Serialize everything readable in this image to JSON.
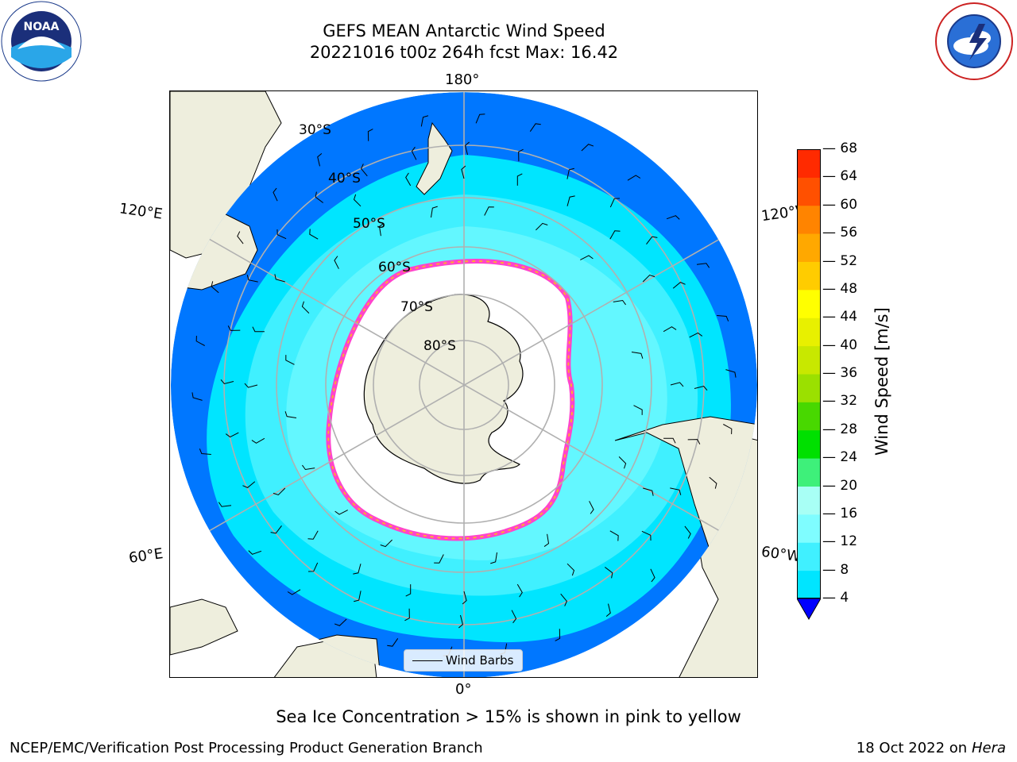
{
  "title": {
    "line1": "GEFS MEAN Antarctic Wind Speed",
    "line2": "20221016 t00z 264h fcst   Max: 16.42"
  },
  "logos": {
    "noaa": {
      "text": "NOAA",
      "ring_text": "NATIONAL OCEANIC AND ATMOSPHERIC ADMINISTRATION · U.S. DEPARTMENT OF COMMERCE"
    },
    "nws": {
      "ring_text": "NATIONAL WEATHER SERVICE"
    }
  },
  "map": {
    "projection": "south-polar-stereographic",
    "longitude_labels": {
      "top": "180°",
      "bottom": "0°",
      "upper_left": "120°E",
      "upper_right": "120°W",
      "lower_left": "60°E",
      "lower_right": "60°W"
    },
    "latitude_labels": [
      "30°S",
      "40°S",
      "50°S",
      "60°S",
      "70°S",
      "80°S"
    ],
    "legend": {
      "label": "Wind Barbs"
    }
  },
  "colorbar": {
    "label": "Wind Speed [m/s]",
    "ticks": [
      "4",
      "8",
      "12",
      "16",
      "20",
      "24",
      "28",
      "32",
      "36",
      "40",
      "44",
      "48",
      "52",
      "56",
      "60",
      "64",
      "68"
    ],
    "colors": [
      "#0077ff",
      "#00e5ff",
      "#40f0ff",
      "#7ffdff",
      "#a8fff5",
      "#3ef07a",
      "#00e000",
      "#48d800",
      "#9be000",
      "#c8e800",
      "#e8f000",
      "#ffff00",
      "#ffcc00",
      "#ffa800",
      "#ff8400",
      "#ff5000",
      "#ff2a00",
      "#ff0000"
    ],
    "extend_color": "#0000ff"
  },
  "caption": "Sea Ice Concentration > 15% is shown in pink to yellow",
  "footer": {
    "left": "NCEP/EMC/Verification Post Processing Product Generation Branch",
    "right_prefix": "18 Oct 2022 on ",
    "right_italic": "Hera"
  }
}
